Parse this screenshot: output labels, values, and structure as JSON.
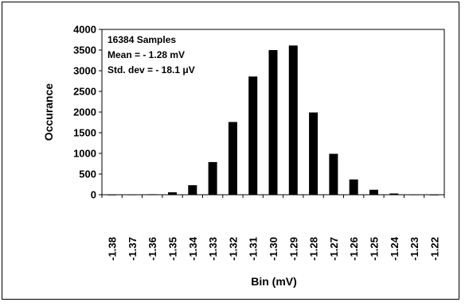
{
  "chart_data": {
    "type": "bar",
    "title": "",
    "xlabel": "Bin (mV)",
    "ylabel": "Occurance",
    "ylim": [
      0,
      4000
    ],
    "yticks": [
      0,
      500,
      1000,
      1500,
      2000,
      2500,
      3000,
      3500,
      4000
    ],
    "grid": false,
    "bar_color": "#000000",
    "categories": [
      "-1.38",
      "-1.37",
      "-1.36",
      "-1.35",
      "-1.34",
      "-1.33",
      "-1.32",
      "-1.31",
      "-1.30",
      "-1.29",
      "-1.28",
      "-1.27",
      "-1.26",
      "-1.25",
      "-1.24",
      "-1.23",
      "-1.22"
    ],
    "values": [
      5,
      8,
      12,
      60,
      230,
      790,
      1760,
      2860,
      3500,
      3610,
      1990,
      990,
      370,
      120,
      30,
      8,
      5
    ],
    "annotations": [
      "16384 Samples",
      "Mean = - 1.28 mV",
      "Std. dev = - 18.1 μV"
    ]
  }
}
